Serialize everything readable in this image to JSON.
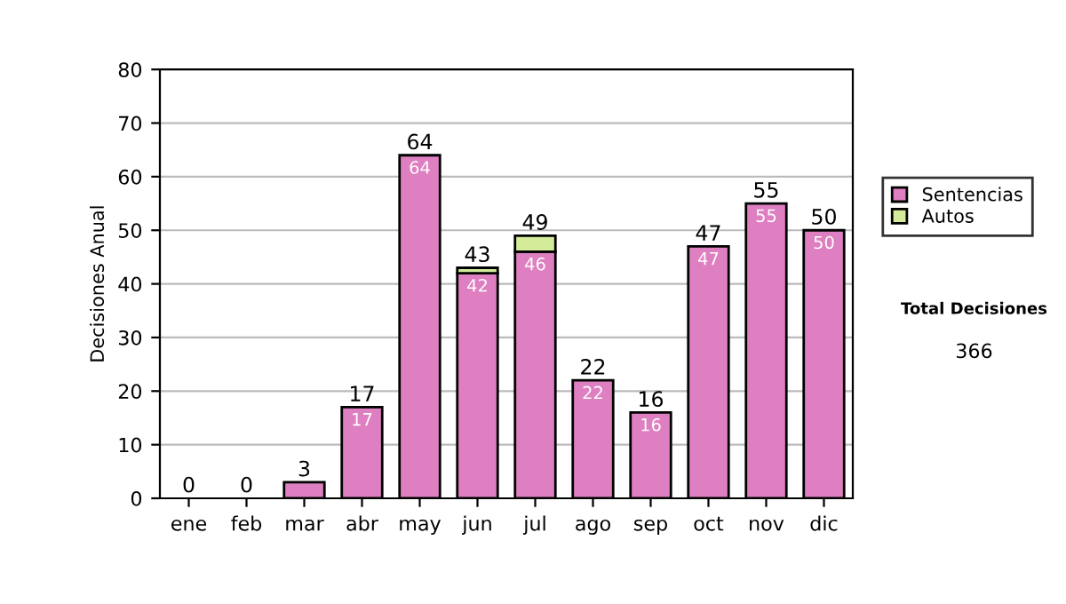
{
  "chart_data": {
    "type": "bar",
    "ylabel": "Decisiones Anual",
    "categories": [
      "ene",
      "feb",
      "mar",
      "abr",
      "may",
      "jun",
      "jul",
      "ago",
      "sep",
      "oct",
      "nov",
      "dic"
    ],
    "series": [
      {
        "name": "Sentencias",
        "color": "#dd7fc0",
        "values": [
          0,
          0,
          3,
          17,
          64,
          42,
          46,
          22,
          16,
          47,
          55,
          50
        ],
        "value_labels": [
          null,
          null,
          null,
          "17",
          "64",
          "42",
          "46",
          "22",
          "16",
          "47",
          "55",
          "50"
        ]
      },
      {
        "name": "Autos",
        "color": "#d4ec9a",
        "values": [
          0,
          0,
          0,
          0,
          0,
          1,
          3,
          0,
          0,
          0,
          0,
          0
        ]
      }
    ],
    "stacked": true,
    "totals": [
      "0",
      "0",
      "3",
      "17",
      "64",
      "43",
      "49",
      "22",
      "16",
      "47",
      "55",
      "50"
    ],
    "ylim": [
      0,
      80
    ],
    "yticks": [
      0,
      10,
      20,
      30,
      40,
      50,
      60,
      70,
      80
    ],
    "grid": "y",
    "legend": "right",
    "annotations": [
      "Total Decisiones",
      "366"
    ]
  }
}
